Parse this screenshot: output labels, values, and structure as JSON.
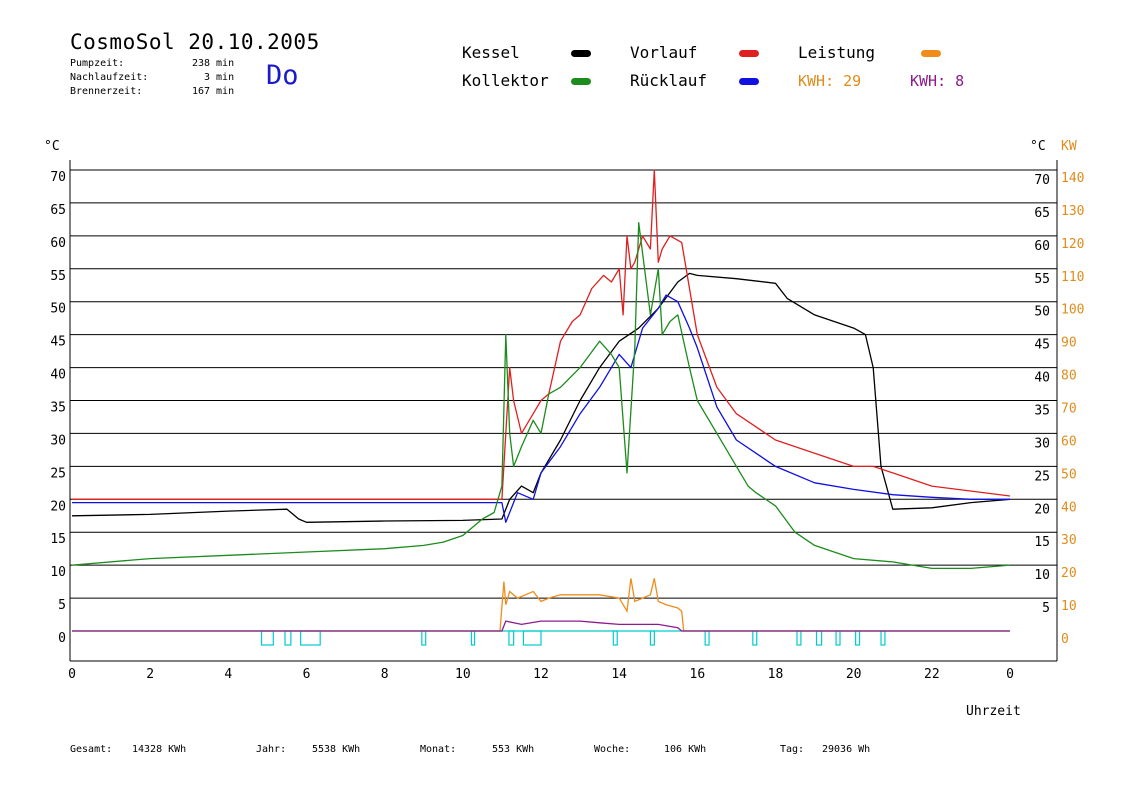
{
  "title": "CosmoSol 20.10.2005",
  "day": "Do",
  "stats": [
    {
      "label": "Pumpzeit:",
      "value": "238",
      "unit": "min"
    },
    {
      "label": "Nachlaufzeit:",
      "value": "3",
      "unit": "min"
    },
    {
      "label": "Brennerzeit:",
      "value": "167",
      "unit": "min"
    }
  ],
  "legend": {
    "kessel": {
      "label": "Kessel",
      "color": "#000000"
    },
    "vorlauf": {
      "label": "Vorlauf",
      "color": "#e02020"
    },
    "leistung": {
      "label": "Leistung",
      "color": "#f08c1c"
    },
    "kollektor": {
      "label": "Kollektor",
      "color": "#1c8c1c"
    },
    "ruecklauf": {
      "label": "Rücklauf",
      "color": "#1010e0"
    },
    "kwh1": "KWH: 29",
    "kwh2": "KWH: 8",
    "kwh1_color": "#e08c1c",
    "kwh2_color": "#8c1c8c"
  },
  "footer": {
    "gesamt_label": "Gesamt:",
    "gesamt_value": "14328 KWh",
    "jahr_label": "Jahr:",
    "jahr_value": "5538 KWh",
    "monat_label": "Monat:",
    "monat_value": "553 KWh",
    "woche_label": "Woche:",
    "woche_value": "106 KWh",
    "tag_label": "Tag:",
    "tag_value": "29036 Wh"
  },
  "chart_data": {
    "type": "line",
    "xlabel": "Uhrzeit",
    "ylabel_left": "°C",
    "ylabel_right_temp": "°C",
    "ylabel_right_power": "KW",
    "xlim": [
      0,
      24
    ],
    "ylim": [
      0,
      70
    ],
    "x_ticks": [
      "0",
      "2",
      "4",
      "6",
      "8",
      "10",
      "12",
      "14",
      "16",
      "18",
      "20",
      "22",
      "0"
    ],
    "y_ticks_left": [
      "0",
      "5",
      "10",
      "15",
      "20",
      "25",
      "30",
      "35",
      "40",
      "45",
      "50",
      "55",
      "60",
      "65",
      "70"
    ],
    "y_ticks_right_temp": [
      "5",
      "10",
      "15",
      "20",
      "25",
      "30",
      "35",
      "40",
      "45",
      "50",
      "55",
      "60",
      "65",
      "70"
    ],
    "y_ticks_right_power": [
      "0",
      "10",
      "20",
      "30",
      "40",
      "50",
      "60",
      "70",
      "80",
      "90",
      "100",
      "110",
      "120",
      "130",
      "140"
    ],
    "grid": true,
    "series": [
      {
        "name": "Kessel",
        "color": "#000000",
        "x": [
          0,
          2,
          4,
          5.5,
          5.8,
          6,
          8,
          10,
          11,
          11.2,
          11.5,
          11.8,
          12,
          12.5,
          13,
          13.5,
          14,
          14.5,
          15,
          15.5,
          15.8,
          16,
          17,
          18,
          18.3,
          19,
          20,
          20.3,
          20.5,
          20.7,
          21,
          22,
          23,
          24
        ],
        "y": [
          17.5,
          17.7,
          18.2,
          18.5,
          17,
          16.5,
          16.7,
          16.8,
          17,
          20,
          22,
          21,
          24,
          29,
          35,
          40,
          44,
          46,
          49,
          53,
          54.3,
          54,
          53.5,
          52.8,
          50.5,
          48,
          46,
          45,
          40,
          25,
          18.5,
          18.7,
          19.5,
          20
        ]
      },
      {
        "name": "Vorlauf",
        "color": "#e02020",
        "x": [
          0,
          11,
          11.1,
          11.2,
          11.3,
          11.5,
          11.6,
          11.8,
          12,
          12.2,
          12.5,
          12.8,
          13,
          13.3,
          13.6,
          13.8,
          14,
          14.1,
          14.2,
          14.3,
          14.4,
          14.6,
          14.8,
          14.9,
          15,
          15.1,
          15.3,
          15.6,
          15.8,
          16,
          16.5,
          17,
          18,
          19,
          20,
          20.5,
          21,
          22,
          24
        ],
        "y": [
          20,
          20,
          30,
          40,
          35,
          30,
          31,
          33,
          35,
          36,
          44,
          47,
          48,
          52,
          54,
          53,
          55,
          48,
          60,
          55,
          56,
          60,
          58,
          70,
          56,
          58,
          60,
          59,
          52,
          45,
          37,
          33,
          29,
          27,
          25,
          25,
          24,
          22,
          20.5
        ]
      },
      {
        "name": "Rücklauf",
        "color": "#1010e0",
        "x": [
          0,
          11,
          11.1,
          11.4,
          11.8,
          12,
          12.5,
          13,
          13.5,
          13.8,
          14,
          14.3,
          14.6,
          15,
          15.2,
          15.5,
          15.8,
          16,
          16.5,
          17,
          18,
          19,
          20,
          21,
          22,
          23,
          24
        ],
        "y": [
          19.5,
          19.5,
          16.5,
          21,
          20,
          24,
          28,
          33,
          37,
          40,
          42,
          40,
          46,
          49,
          51,
          50,
          46,
          43,
          34,
          29,
          25,
          22.5,
          21.5,
          20.7,
          20.3,
          20,
          20
        ]
      },
      {
        "name": "Kollektor",
        "color": "#1c8c1c",
        "x": [
          0,
          2,
          4,
          6,
          8,
          9,
          9.5,
          10,
          10.5,
          10.8,
          11,
          11.1,
          11.2,
          11.3,
          11.5,
          11.8,
          12,
          12.2,
          12.5,
          13,
          13.5,
          13.8,
          14,
          14.2,
          14.4,
          14.5,
          14.8,
          15,
          15.1,
          15.3,
          15.5,
          15.8,
          16,
          16.5,
          17,
          17.3,
          17.5,
          18,
          18.5,
          19,
          19.5,
          20,
          21,
          22,
          23,
          24
        ],
        "y": [
          10,
          11,
          11.5,
          12,
          12.5,
          13,
          13.5,
          14.5,
          17,
          18,
          22,
          45,
          30,
          25,
          28,
          32,
          30,
          36,
          37,
          40,
          44,
          42,
          40,
          24,
          43,
          62,
          48,
          55,
          45,
          47,
          48,
          40,
          35,
          30,
          25,
          22,
          21,
          19,
          15,
          13,
          12,
          11,
          10.5,
          9.5,
          9.5,
          10
        ]
      }
    ],
    "power_series": [
      {
        "name": "Leistung",
        "color": "#f08c1c",
        "unit": "KW",
        "x": [
          0,
          10.95,
          11.05,
          11.1,
          11.2,
          11.4,
          11.6,
          11.8,
          12,
          12.2,
          12.5,
          13,
          13.5,
          14,
          14.2,
          14.3,
          14.4,
          14.6,
          14.8,
          14.9,
          15,
          15.2,
          15.5,
          15.6,
          15.65,
          24
        ],
        "y": [
          0,
          0,
          15,
          8,
          12,
          10,
          11,
          12,
          9,
          10,
          11,
          11,
          11,
          10,
          6,
          16,
          9,
          10,
          11,
          16,
          9,
          8,
          7,
          6,
          0,
          0
        ]
      },
      {
        "name": "KWH 8",
        "color": "#8c1c8c",
        "unit": "KW",
        "x": [
          0,
          11,
          11.1,
          11.5,
          12,
          12.5,
          13,
          13.5,
          14,
          14.5,
          15,
          15.5,
          15.6,
          24
        ],
        "y": [
          0,
          0,
          3,
          2,
          3,
          3,
          3,
          2.5,
          2,
          2,
          2,
          1,
          0,
          0
        ]
      }
    ],
    "burner_intervals": [
      [
        4.85,
        5.15
      ],
      [
        5.45,
        5.6
      ],
      [
        5.85,
        6.35
      ],
      [
        8.95,
        9.05
      ],
      [
        10.22,
        10.3
      ],
      [
        11.18,
        11.3
      ],
      [
        11.55,
        12.0
      ],
      [
        13.85,
        13.95
      ],
      [
        14.8,
        14.9
      ],
      [
        16.2,
        16.3
      ],
      [
        17.42,
        17.52
      ],
      [
        18.55,
        18.65
      ],
      [
        19.05,
        19.18
      ],
      [
        19.55,
        19.65
      ],
      [
        20.05,
        20.15
      ],
      [
        20.7,
        20.8
      ]
    ],
    "burner_color": "#00cccc"
  }
}
